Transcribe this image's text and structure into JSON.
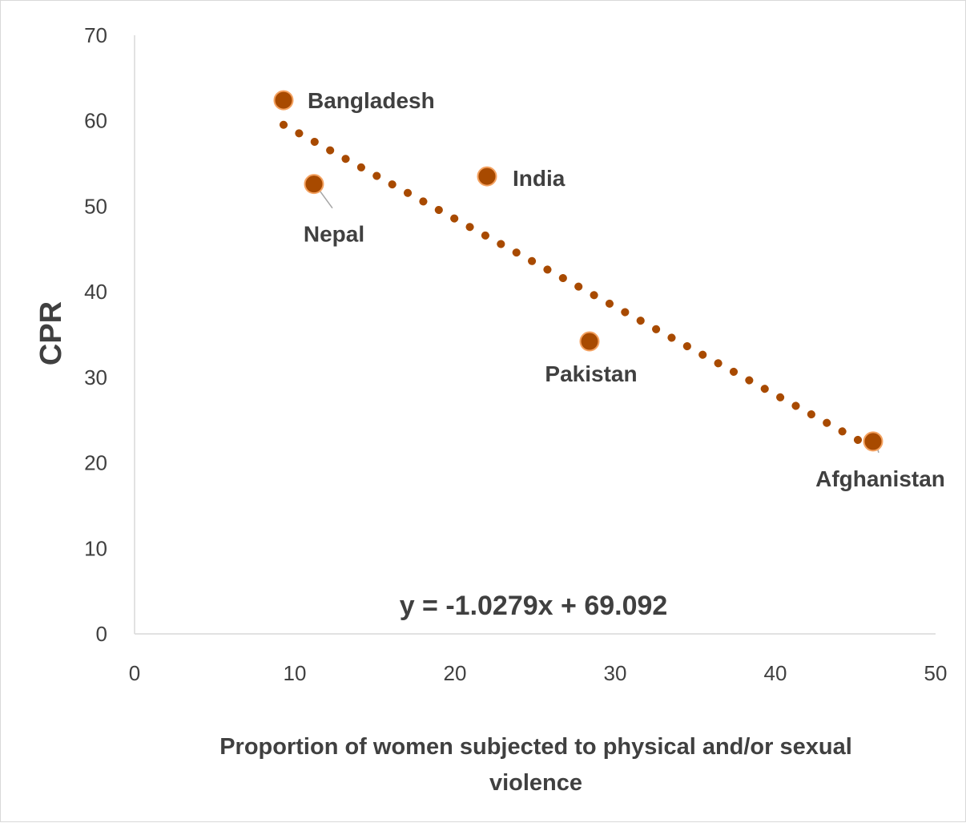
{
  "chart_data": {
    "type": "scatter",
    "title": "",
    "xlabel_lines": [
      "Proportion of women subjected to physical and/or sexual",
      "violence"
    ],
    "ylabel": "CPR",
    "xlim": [
      0,
      50
    ],
    "ylim": [
      0,
      70
    ],
    "xticks": [
      0,
      10,
      20,
      30,
      40,
      50
    ],
    "yticks": [
      0,
      10,
      20,
      30,
      40,
      50,
      60,
      70
    ],
    "grid": false,
    "legend": "none",
    "marker_color": "#a84a00",
    "marker_edge_color": "#f4a261",
    "trendline_color": "#a84a00",
    "points": [
      {
        "label": "Bangladesh",
        "x": 9.3,
        "y": 62.4
      },
      {
        "label": "Nepal",
        "x": 11.2,
        "y": 52.6
      },
      {
        "label": "India",
        "x": 22.0,
        "y": 53.5
      },
      {
        "label": "Pakistan",
        "x": 28.4,
        "y": 34.2
      },
      {
        "label": "Afghanistan",
        "x": 46.1,
        "y": 22.5
      }
    ],
    "trendline": {
      "slope": -1.0279,
      "intercept": 69.092,
      "x_range": [
        9.3,
        46.1
      ]
    },
    "equation": "y = -1.0279x + 69.092"
  }
}
